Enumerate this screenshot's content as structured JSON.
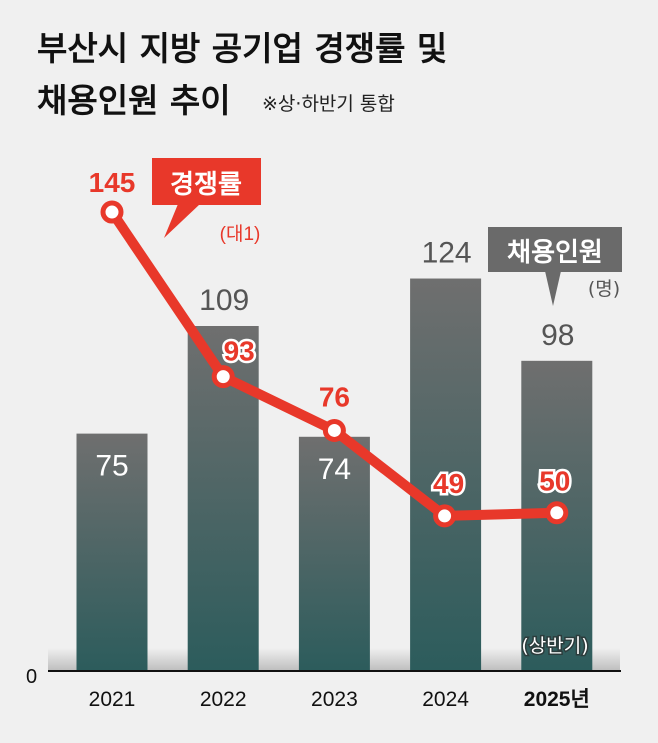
{
  "title": {
    "line1": "부산시 지방 공기업 경쟁률 및",
    "line2": "채용인원 추이",
    "note": "※상·하반기 통합"
  },
  "legend": {
    "line_label": "경쟁률",
    "line_unit": "(대1)",
    "bar_label": "채용인원",
    "bar_unit": "(명)"
  },
  "colors": {
    "line": "#e8382a",
    "bar_top": "#6f6f6f",
    "bar_bottom": "#2c5c5c",
    "background": "#f0f0f0",
    "legend_bar_box": "#6a6a6a"
  },
  "chart_data": {
    "type": "bar+line",
    "categories": [
      "2021",
      "2022",
      "2023",
      "2024",
      "2025년"
    ],
    "category_note": "(상반기)",
    "y_zero_label": "0",
    "series": [
      {
        "name": "채용인원",
        "type": "bar",
        "unit": "(명)",
        "values": [
          75,
          109,
          74,
          124,
          98
        ]
      },
      {
        "name": "경쟁률",
        "type": "line",
        "unit": "(대1)",
        "values": [
          145,
          93,
          76,
          49,
          50
        ]
      }
    ],
    "ylim": [
      0,
      212
    ],
    "grid": false,
    "legend_placement": "inline-callouts"
  }
}
